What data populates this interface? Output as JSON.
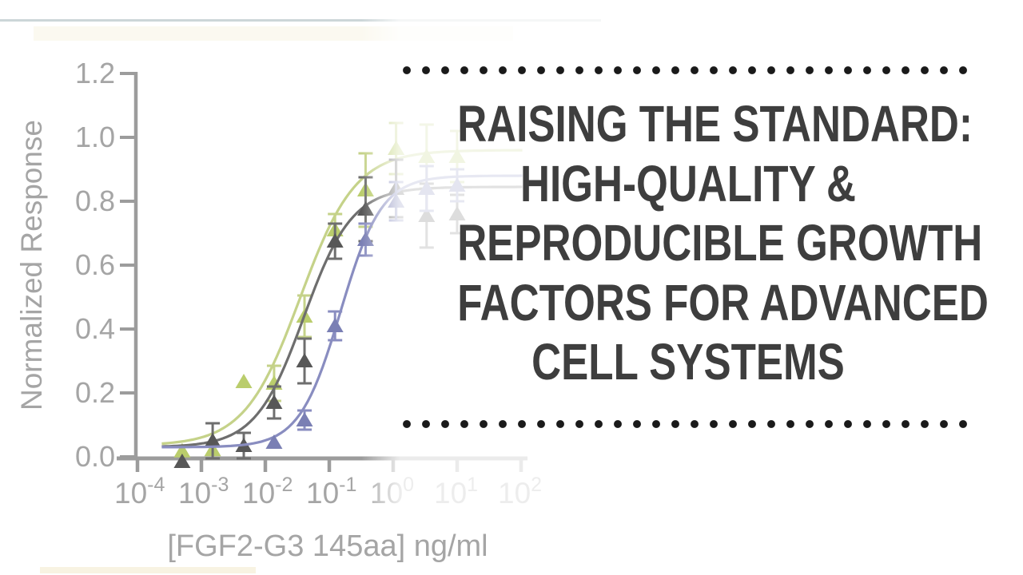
{
  "slide": {
    "title_lines": [
      "RAISING THE STANDARD:",
      "HIGH-QUALITY &",
      "REPRODUCIBLE GROWTH",
      "FACTORS FOR ADVANCED",
      "CELL SYSTEMS"
    ],
    "title_color": "#3e3e3e",
    "dot_color": "#1a1a1a",
    "top_line_color": "#ccd6d8"
  },
  "chart_data": {
    "type": "scatter",
    "title": "",
    "xlabel": "[FGF2-G3 145aa] ng/ml",
    "ylabel": "Normalized Response",
    "x_scale": "log10",
    "xlim": [
      0.0001,
      100
    ],
    "ylim": [
      0,
      1.2
    ],
    "grid": false,
    "legend": "none",
    "axis_color": "#9c9c9c",
    "label_color": "#a5a5a5",
    "x_ticks": [
      {
        "base": "10",
        "sup": "-4"
      },
      {
        "base": "10",
        "sup": "-3"
      },
      {
        "base": "10",
        "sup": "-2"
      },
      {
        "base": "10",
        "sup": "-1"
      },
      {
        "base": "10",
        "sup": "0"
      },
      {
        "base": "10",
        "sup": "1"
      },
      {
        "base": "10",
        "sup": "2"
      }
    ],
    "y_ticks": [
      "0.0",
      "0.2",
      "0.4",
      "0.6",
      "0.8",
      "1.0",
      "1.2"
    ],
    "series": [
      {
        "name": "green",
        "marker": "triangle-up",
        "color": "#bacd6c",
        "line_color": "#c5d289",
        "fit": {
          "bottom": 0.035,
          "top": 0.96,
          "ec50": 0.035,
          "hill": 1.0
        },
        "points": [
          {
            "c": 0.0005,
            "v": 0.018,
            "e": null
          },
          {
            "c": 0.0015,
            "v": 0.022,
            "e": null
          },
          {
            "c": 0.0046,
            "v": 0.235,
            "e": null
          },
          {
            "c": 0.0137,
            "v": 0.23,
            "e": 0.055
          },
          {
            "c": 0.041,
            "v": 0.44,
            "e": 0.065
          },
          {
            "c": 0.123,
            "v": 0.71,
            "e": 0.05
          },
          {
            "c": 0.37,
            "v": 0.835,
            "e": 0.115
          },
          {
            "c": 1.11,
            "v": 0.965,
            "e": 0.08
          },
          {
            "c": 3.33,
            "v": 0.94,
            "e": 0.1
          },
          {
            "c": 10,
            "v": 0.94,
            "e": 0.08
          }
        ]
      },
      {
        "name": "dark-gray",
        "marker": "triangle-up",
        "color": "#575757",
        "line_color": "#6e6e6e",
        "fit": {
          "bottom": 0.03,
          "top": 0.845,
          "ec50": 0.04,
          "hill": 1.15
        },
        "points": [
          {
            "c": 0.0005,
            "v": -0.015,
            "e": null
          },
          {
            "c": 0.0015,
            "v": 0.05,
            "e": 0.055
          },
          {
            "c": 0.0046,
            "v": 0.035,
            "e": 0.04
          },
          {
            "c": 0.0137,
            "v": 0.17,
            "e": 0.05
          },
          {
            "c": 0.041,
            "v": 0.3,
            "e": 0.07
          },
          {
            "c": 0.123,
            "v": 0.675,
            "e": 0.055
          },
          {
            "c": 0.37,
            "v": 0.775,
            "e": 0.1
          },
          {
            "c": 1.11,
            "v": 0.84,
            "e": 0.09
          },
          {
            "c": 3.33,
            "v": 0.755,
            "e": 0.1
          },
          {
            "c": 10,
            "v": 0.76,
            "e": 0.06
          }
        ]
      },
      {
        "name": "blue",
        "marker": "triangle-up",
        "color": "#7a7fb4",
        "line_color": "#898dc0",
        "fit": {
          "bottom": 0.03,
          "top": 0.88,
          "ec50": 0.15,
          "hill": 1.35
        },
        "points": [
          {
            "c": 0.0137,
            "v": 0.045,
            "e": null
          },
          {
            "c": 0.041,
            "v": 0.115,
            "e": 0.03
          },
          {
            "c": 0.123,
            "v": 0.41,
            "e": 0.045
          },
          {
            "c": 0.37,
            "v": 0.68,
            "e": 0.05
          },
          {
            "c": 1.11,
            "v": 0.8,
            "e": 0.06
          },
          {
            "c": 3.33,
            "v": 0.84,
            "e": 0.07
          },
          {
            "c": 10,
            "v": 0.85,
            "e": 0.05
          }
        ]
      }
    ]
  }
}
